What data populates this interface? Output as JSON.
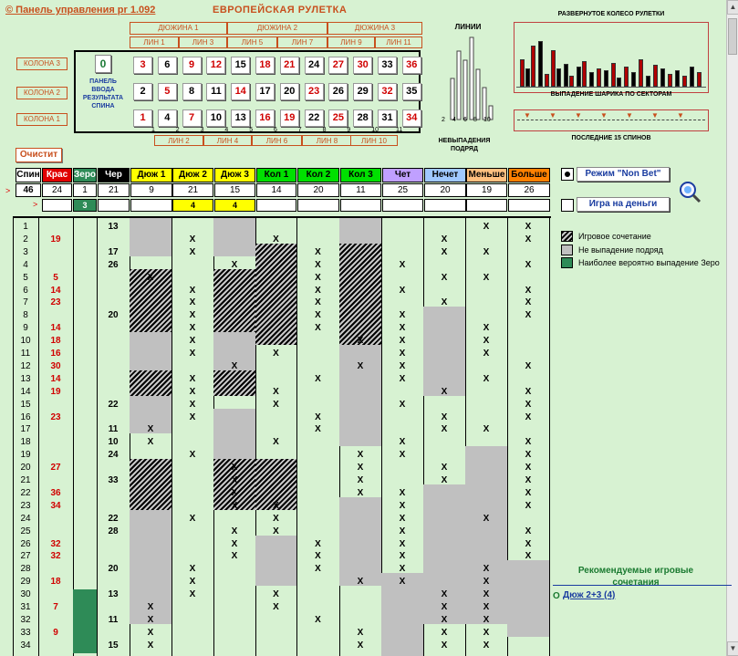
{
  "app": {
    "title_link": "© Панель управления  pr 1.092",
    "title": "ЕВРОПЕЙСКАЯ  РУЛЕТКА"
  },
  "dozens": [
    "ДЮЖИНА 1",
    "ДЮЖИНА 2",
    "ДЮЖИНА 3"
  ],
  "lines_top": [
    "ЛИН 1",
    "ЛИН 3",
    "ЛИН 5",
    "ЛИН 7",
    "ЛИН 9",
    "ЛИН 11"
  ],
  "lines_bottom": [
    "ЛИН 2",
    "ЛИН 4",
    "ЛИН 6",
    "ЛИН 8",
    "ЛИН 10"
  ],
  "columns": [
    "КОЛОНА 3",
    "КОЛОНА 2",
    "КОЛОНА 1"
  ],
  "panel_label": "ПАНЕЛЬ ВВОДА РЕЗУЛЬТАТА СПИНА",
  "zero": "0",
  "board_rows": [
    [
      [
        "3",
        "r"
      ],
      [
        "6",
        "b"
      ],
      [
        "9",
        "r"
      ],
      [
        "12",
        "r"
      ],
      [
        "15",
        "b"
      ],
      [
        "18",
        "r"
      ],
      [
        "21",
        "r"
      ],
      [
        "24",
        "b"
      ],
      [
        "27",
        "r"
      ],
      [
        "30",
        "r"
      ],
      [
        "33",
        "b"
      ],
      [
        "36",
        "r"
      ]
    ],
    [
      [
        "2",
        "b"
      ],
      [
        "5",
        "r"
      ],
      [
        "8",
        "b"
      ],
      [
        "11",
        "b"
      ],
      [
        "14",
        "r"
      ],
      [
        "17",
        "b"
      ],
      [
        "20",
        "b"
      ],
      [
        "23",
        "r"
      ],
      [
        "26",
        "b"
      ],
      [
        "29",
        "b"
      ],
      [
        "32",
        "r"
      ],
      [
        "35",
        "b"
      ]
    ],
    [
      [
        "1",
        "r"
      ],
      [
        "4",
        "b"
      ],
      [
        "7",
        "r"
      ],
      [
        "10",
        "b"
      ],
      [
        "13",
        "b"
      ],
      [
        "16",
        "r"
      ],
      [
        "19",
        "r"
      ],
      [
        "22",
        "b"
      ],
      [
        "25",
        "r"
      ],
      [
        "28",
        "b"
      ],
      [
        "31",
        "b"
      ],
      [
        "34",
        "r"
      ]
    ]
  ],
  "board_small": [
    "1",
    "2",
    "3",
    "4",
    "5",
    "6",
    "7",
    "8",
    "9",
    "10",
    "11"
  ],
  "lines_title": "ЛИНИИ",
  "lines_axis": [
    "2",
    "4",
    "6",
    "8",
    "10"
  ],
  "lines_caption": "НЕВЫПАДЕНИЯ ПОДРЯД",
  "wheel_title": "РАЗВЕРНУТОЕ КОЛЕСО РУЛЕТКИ",
  "wheel_caption": "ВЫПАДЕНИЕ ШАРИКА ПО СЕКТОРАМ",
  "last15_caption": "ПОСЛЕДНИЕ 15 СПИНОВ",
  "clear_button": "Очистит",
  "mode_button": "Режим \"Non Bet\"",
  "money_button": "Игра на деньги",
  "headers": [
    {
      "label": "Спин",
      "bg": "#ffffff",
      "fg": "#000000"
    },
    {
      "label": "Крас",
      "bg": "#e00000",
      "fg": "#ffffff"
    },
    {
      "label": "Зеро",
      "bg": "#2e8b57",
      "fg": "#ffffff"
    },
    {
      "label": "Чер",
      "bg": "#000000",
      "fg": "#ffffff"
    },
    {
      "label": "Дюж 1",
      "bg": "#ffff00",
      "fg": "#000000"
    },
    {
      "label": "Дюж 2",
      "bg": "#ffff00",
      "fg": "#000000"
    },
    {
      "label": "Дюж 3",
      "bg": "#ffff00",
      "fg": "#000000"
    },
    {
      "label": "Кол 1",
      "bg": "#00e000",
      "fg": "#000000"
    },
    {
      "label": "Кол 2",
      "bg": "#00e000",
      "fg": "#000000"
    },
    {
      "label": "Кол 3",
      "bg": "#00e000",
      "fg": "#000000"
    },
    {
      "label": "Чет",
      "bg": "#c0a0ff",
      "fg": "#000000"
    },
    {
      "label": "Нечет",
      "bg": "#a0c8ff",
      "fg": "#000000"
    },
    {
      "label": "Меньше",
      "bg": "#ffc080",
      "fg": "#000000"
    },
    {
      "label": "Больше",
      "bg": "#ff8000",
      "fg": "#000000"
    }
  ],
  "counts": [
    "46",
    "24",
    "1",
    "21",
    "9",
    "21",
    "15",
    "14",
    "20",
    "11",
    "25",
    "20",
    "19",
    "26"
  ],
  "row3": [
    "",
    "",
    "3",
    "",
    "",
    "4",
    "4",
    "",
    "",
    "",
    "",
    "",
    "",
    ""
  ],
  "spins": [
    {
      "n": "1",
      "red": "",
      "zero": "",
      "black": "13",
      "marks": [
        0,
        0,
        0,
        0,
        0,
        0,
        0,
        0,
        1,
        1
      ]
    },
    {
      "n": "2",
      "red": "19",
      "zero": "",
      "black": "",
      "marks": [
        0,
        1,
        0,
        1,
        0,
        0,
        0,
        1,
        0,
        1
      ]
    },
    {
      "n": "3",
      "red": "",
      "zero": "",
      "black": "17",
      "marks": [
        0,
        1,
        0,
        0,
        1,
        0,
        0,
        1,
        1,
        0
      ]
    },
    {
      "n": "4",
      "red": "",
      "zero": "",
      "black": "26",
      "marks": [
        0,
        0,
        1,
        0,
        1,
        0,
        1,
        0,
        0,
        1
      ]
    },
    {
      "n": "5",
      "red": "5",
      "zero": "",
      "black": "",
      "marks": [
        1,
        0,
        0,
        0,
        1,
        0,
        0,
        1,
        1,
        0
      ]
    },
    {
      "n": "6",
      "red": "14",
      "zero": "",
      "black": "",
      "marks": [
        0,
        1,
        0,
        0,
        1,
        0,
        1,
        0,
        0,
        1
      ]
    },
    {
      "n": "7",
      "red": "23",
      "zero": "",
      "black": "",
      "marks": [
        0,
        1,
        0,
        0,
        1,
        0,
        0,
        1,
        0,
        1
      ]
    },
    {
      "n": "8",
      "red": "",
      "zero": "",
      "black": "20",
      "marks": [
        0,
        1,
        0,
        0,
        1,
        0,
        1,
        0,
        0,
        1
      ]
    },
    {
      "n": "9",
      "red": "14",
      "zero": "",
      "black": "",
      "marks": [
        0,
        1,
        0,
        0,
        1,
        0,
        1,
        0,
        1,
        0
      ]
    },
    {
      "n": "10",
      "red": "18",
      "zero": "",
      "black": "",
      "marks": [
        0,
        1,
        0,
        0,
        0,
        1,
        1,
        0,
        1,
        0
      ]
    },
    {
      "n": "11",
      "red": "16",
      "zero": "",
      "black": "",
      "marks": [
        0,
        1,
        0,
        1,
        0,
        0,
        1,
        0,
        1,
        0
      ]
    },
    {
      "n": "12",
      "red": "30",
      "zero": "",
      "black": "",
      "marks": [
        0,
        0,
        1,
        0,
        0,
        1,
        1,
        0,
        0,
        1
      ]
    },
    {
      "n": "13",
      "red": "14",
      "zero": "",
      "black": "",
      "marks": [
        0,
        1,
        0,
        0,
        1,
        0,
        1,
        0,
        1,
        0
      ]
    },
    {
      "n": "14",
      "red": "19",
      "zero": "",
      "black": "",
      "marks": [
        0,
        1,
        0,
        1,
        0,
        0,
        0,
        1,
        0,
        1
      ]
    },
    {
      "n": "15",
      "red": "",
      "zero": "",
      "black": "22",
      "marks": [
        0,
        1,
        0,
        1,
        0,
        0,
        1,
        0,
        0,
        1
      ]
    },
    {
      "n": "16",
      "red": "23",
      "zero": "",
      "black": "",
      "marks": [
        0,
        1,
        0,
        0,
        1,
        0,
        0,
        1,
        0,
        1
      ]
    },
    {
      "n": "17",
      "red": "",
      "zero": "",
      "black": "11",
      "marks": [
        1,
        0,
        0,
        0,
        1,
        0,
        0,
        1,
        1,
        0
      ]
    },
    {
      "n": "18",
      "red": "",
      "zero": "",
      "black": "10",
      "marks": [
        1,
        0,
        0,
        1,
        0,
        0,
        1,
        0,
        0,
        1
      ]
    },
    {
      "n": "19",
      "red": "",
      "zero": "",
      "black": "24",
      "marks": [
        0,
        1,
        0,
        0,
        0,
        1,
        1,
        0,
        0,
        1
      ]
    },
    {
      "n": "20",
      "red": "27",
      "zero": "",
      "black": "",
      "marks": [
        0,
        0,
        1,
        0,
        0,
        1,
        0,
        1,
        0,
        1
      ]
    },
    {
      "n": "21",
      "red": "",
      "zero": "",
      "black": "33",
      "marks": [
        0,
        0,
        1,
        0,
        0,
        1,
        0,
        1,
        0,
        1
      ]
    },
    {
      "n": "22",
      "red": "36",
      "zero": "",
      "black": "",
      "marks": [
        0,
        0,
        1,
        0,
        0,
        1,
        1,
        0,
        0,
        1
      ]
    },
    {
      "n": "23",
      "red": "34",
      "zero": "",
      "black": "",
      "marks": [
        0,
        0,
        1,
        1,
        0,
        0,
        1,
        0,
        0,
        1
      ]
    },
    {
      "n": "24",
      "red": "",
      "zero": "",
      "black": "22",
      "marks": [
        0,
        1,
        0,
        1,
        0,
        0,
        1,
        0,
        1,
        0
      ]
    },
    {
      "n": "25",
      "red": "",
      "zero": "",
      "black": "28",
      "marks": [
        0,
        0,
        1,
        1,
        0,
        0,
        1,
        0,
        0,
        1
      ]
    },
    {
      "n": "26",
      "red": "32",
      "zero": "",
      "black": "",
      "marks": [
        0,
        0,
        1,
        0,
        1,
        0,
        1,
        0,
        0,
        1
      ]
    },
    {
      "n": "27",
      "red": "32",
      "zero": "",
      "black": "",
      "marks": [
        0,
        0,
        1,
        0,
        1,
        0,
        1,
        0,
        0,
        1
      ]
    },
    {
      "n": "28",
      "red": "",
      "zero": "",
      "black": "20",
      "marks": [
        0,
        1,
        0,
        0,
        1,
        0,
        1,
        0,
        1,
        0
      ]
    },
    {
      "n": "29",
      "red": "18",
      "zero": "",
      "black": "",
      "marks": [
        0,
        1,
        0,
        0,
        0,
        1,
        1,
        0,
        1,
        0
      ]
    },
    {
      "n": "30",
      "red": "",
      "zero": "",
      "black": "13",
      "marks": [
        0,
        1,
        0,
        1,
        0,
        0,
        0,
        1,
        1,
        0
      ]
    },
    {
      "n": "31",
      "red": "7",
      "zero": "",
      "black": "",
      "marks": [
        1,
        0,
        0,
        1,
        0,
        0,
        0,
        1,
        1,
        0
      ]
    },
    {
      "n": "32",
      "red": "",
      "zero": "",
      "black": "11",
      "marks": [
        1,
        0,
        0,
        0,
        1,
        0,
        0,
        1,
        1,
        0
      ]
    },
    {
      "n": "33",
      "red": "9",
      "zero": "",
      "black": "",
      "marks": [
        1,
        0,
        0,
        0,
        0,
        1,
        0,
        1,
        1,
        0
      ]
    },
    {
      "n": "34",
      "red": "",
      "zero": "",
      "black": "15",
      "marks": [
        1,
        0,
        0,
        0,
        0,
        1,
        0,
        1,
        1,
        0
      ]
    }
  ],
  "legend": [
    {
      "label": "Игровое сочетание",
      "type": "hatch"
    },
    {
      "label": "Не выпадение подряд",
      "type": "gray"
    },
    {
      "label": "Наиболее вероятно выпадение Зеро",
      "type": "green"
    }
  ],
  "recommended_title": "Рекомендуемые игровые сочетания",
  "recommended_item": "Дюж 2+3 (4)",
  "colors": {
    "accent": "#c8501e",
    "bg": "#d7f2d2",
    "red": "#d00000",
    "link": "#1a3ca0"
  }
}
